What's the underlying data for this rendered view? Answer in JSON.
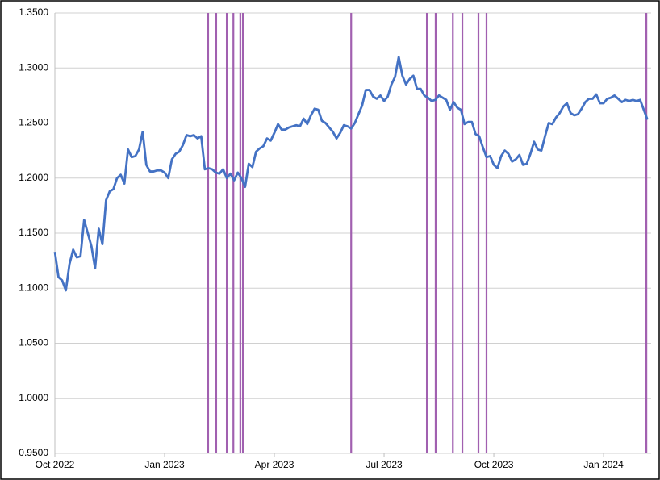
{
  "chart_data": {
    "type": "line",
    "x": [
      0,
      0.1,
      0.2,
      0.3,
      0.4,
      0.5,
      0.6,
      0.7,
      0.8,
      0.9,
      1,
      1.1,
      1.2,
      1.3,
      1.4,
      1.5,
      1.6,
      1.7,
      1.8,
      1.9,
      2,
      2.1,
      2.2,
      2.3,
      2.4,
      2.5,
      2.6,
      2.7,
      2.8,
      2.9,
      3,
      3.1,
      3.2,
      3.3,
      3.4,
      3.5,
      3.6,
      3.7,
      3.8,
      3.9,
      4,
      4.1,
      4.2,
      4.3,
      4.4,
      4.5,
      4.6,
      4.7,
      4.8,
      4.9,
      5,
      5.1,
      5.2,
      5.3,
      5.4,
      5.5,
      5.6,
      5.7,
      5.8,
      5.9,
      6,
      6.1,
      6.2,
      6.3,
      6.4,
      6.5,
      6.6,
      6.7,
      6.8,
      6.9,
      7,
      7.1,
      7.2,
      7.3,
      7.4,
      7.5,
      7.6,
      7.7,
      7.8,
      7.9,
      8,
      8.1,
      8.2,
      8.3,
      8.4,
      8.5,
      8.6,
      8.7,
      8.8,
      8.9,
      9,
      9.1,
      9.2,
      9.3,
      9.4,
      9.5,
      9.6,
      9.7,
      9.8,
      9.9,
      10,
      10.1,
      10.2,
      10.3,
      10.4,
      10.5,
      10.6,
      10.7,
      10.8,
      10.9,
      11,
      11.1,
      11.2,
      11.3,
      11.4,
      11.5,
      11.6,
      11.7,
      11.8,
      11.9,
      12,
      12.1,
      12.2,
      12.3,
      12.4,
      12.5,
      12.6,
      12.7,
      12.8,
      12.9,
      13,
      13.1,
      13.2,
      13.3,
      13.4,
      13.5,
      13.6,
      13.7,
      13.8,
      13.9,
      14,
      14.1,
      14.2,
      14.3,
      14.4,
      14.5,
      14.6,
      14.7,
      14.8,
      14.9,
      15,
      15.1,
      15.2,
      15.3,
      15.4,
      15.5,
      15.6,
      15.7,
      15.8,
      15.9,
      16,
      16.1,
      16.2
    ],
    "series": [
      {
        "color": "#4472c4",
        "values": [
          1.133,
          1.11,
          1.107,
          1.098,
          1.122,
          1.135,
          1.128,
          1.129,
          1.162,
          1.15,
          1.138,
          1.118,
          1.154,
          1.14,
          1.18,
          1.188,
          1.19,
          1.2,
          1.203,
          1.195,
          1.226,
          1.219,
          1.22,
          1.226,
          1.242,
          1.212,
          1.206,
          1.206,
          1.207,
          1.207,
          1.205,
          1.2,
          1.217,
          1.222,
          1.224,
          1.23,
          1.239,
          1.238,
          1.239,
          1.236,
          1.238,
          1.208,
          1.209,
          1.208,
          1.205,
          1.204,
          1.208,
          1.2,
          1.204,
          1.198,
          1.205,
          1.2,
          1.192,
          1.213,
          1.21,
          1.224,
          1.227,
          1.229,
          1.236,
          1.234,
          1.241,
          1.249,
          1.244,
          1.244,
          1.246,
          1.247,
          1.248,
          1.247,
          1.254,
          1.249,
          1.257,
          1.263,
          1.262,
          1.252,
          1.25,
          1.246,
          1.242,
          1.236,
          1.241,
          1.248,
          1.247,
          1.245,
          1.25,
          1.258,
          1.266,
          1.28,
          1.28,
          1.274,
          1.272,
          1.275,
          1.27,
          1.274,
          1.285,
          1.292,
          1.31,
          1.293,
          1.285,
          1.29,
          1.293,
          1.281,
          1.281,
          1.275,
          1.273,
          1.27,
          1.271,
          1.275,
          1.273,
          1.271,
          1.262,
          1.269,
          1.264,
          1.262,
          1.249,
          1.251,
          1.251,
          1.24,
          1.238,
          1.228,
          1.219,
          1.22,
          1.212,
          1.209,
          1.22,
          1.225,
          1.222,
          1.215,
          1.217,
          1.221,
          1.212,
          1.213,
          1.222,
          1.233,
          1.226,
          1.225,
          1.238,
          1.25,
          1.249,
          1.255,
          1.259,
          1.265,
          1.268,
          1.259,
          1.257,
          1.258,
          1.263,
          1.269,
          1.272,
          1.272,
          1.276,
          1.268,
          1.268,
          1.272,
          1.273,
          1.275,
          1.272,
          1.269,
          1.271,
          1.27,
          1.271,
          1.27,
          1.271,
          1.262,
          1.253
        ]
      }
    ],
    "event_lines": {
      "color": "#a160b0",
      "x": [
        4.19,
        4.41,
        4.7,
        4.88,
        5.07,
        5.14,
        8.1,
        10.17,
        10.41,
        10.88,
        11.14,
        11.58,
        11.8,
        16.17
      ]
    },
    "xlim": [
      0,
      16.3
    ],
    "xticks": [
      {
        "value": 0,
        "label": "Oct 2022"
      },
      {
        "value": 3,
        "label": "Jan 2023"
      },
      {
        "value": 6,
        "label": "Apr 2023"
      },
      {
        "value": 9,
        "label": "Jul 2023"
      },
      {
        "value": 12,
        "label": "Oct 2023"
      },
      {
        "value": 15,
        "label": "Jan 2024"
      }
    ],
    "ylim": [
      0.95,
      1.35
    ],
    "yticks": [
      {
        "value": 0.95,
        "label": "0.9500"
      },
      {
        "value": 1.0,
        "label": "1.0000"
      },
      {
        "value": 1.05,
        "label": "1.0500"
      },
      {
        "value": 1.1,
        "label": "1.1000"
      },
      {
        "value": 1.15,
        "label": "1.1500"
      },
      {
        "value": 1.2,
        "label": "1.2000"
      },
      {
        "value": 1.25,
        "label": "1.2500"
      },
      {
        "value": 1.3,
        "label": "1.3000"
      },
      {
        "value": 1.35,
        "label": "1.3500"
      }
    ],
    "grid": true
  }
}
